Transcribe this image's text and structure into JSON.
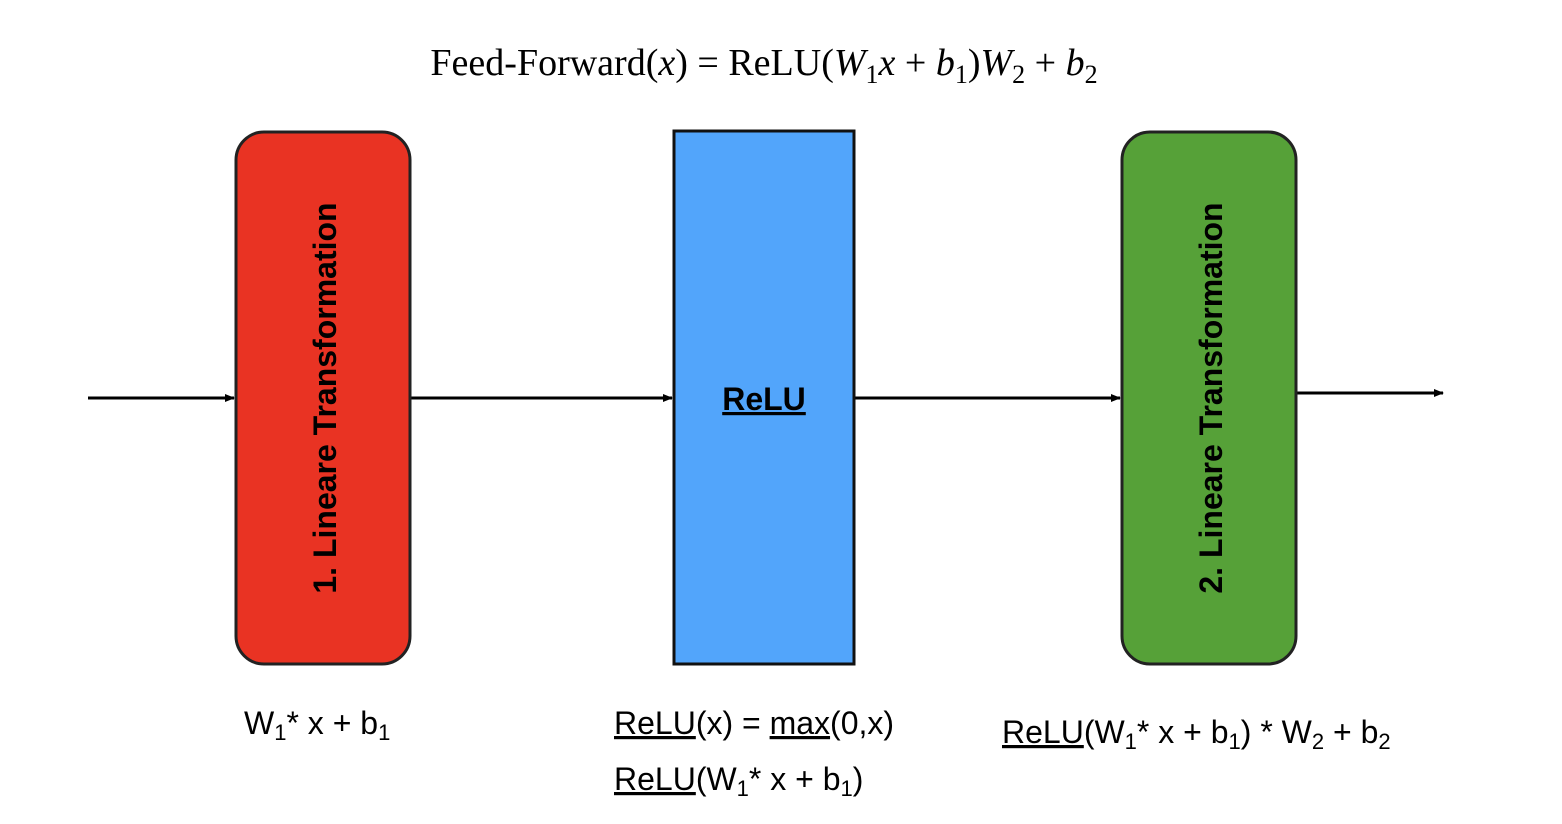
{
  "formula": {
    "name": "Feed-Forward",
    "arg_open": "(",
    "arg": "x",
    "arg_close": ")",
    "equals": " = ",
    "relu": "ReLU",
    "open": "(",
    "w1": "W",
    "w1_sub": "1",
    "x": "x",
    "plus1": " + ",
    "b1": "b",
    "b1_sub": "1",
    "close": ")",
    "w2": "W",
    "w2_sub": "2",
    "plus2": " + ",
    "b2": "b",
    "b2_sub": "2"
  },
  "blocks": [
    {
      "label": "1. Lineare Transformation",
      "color": "#e93323"
    },
    {
      "label": "ReLU",
      "color": "#52a5fb"
    },
    {
      "label": "2. Lineare Transformation",
      "color": "#56a138"
    }
  ],
  "captions": {
    "first": {
      "w": "W",
      "w_sub": "1",
      "rest": "* x + b",
      "b_sub": "1"
    },
    "relu_def": {
      "relu": "ReLU",
      "mid": "(x) = ",
      "max": "max",
      "end": "(0,x)"
    },
    "relu_apply": {
      "relu": "ReLU",
      "open": "(W",
      "w_sub": "1",
      "rest": "* x + b",
      "b_sub": "1",
      "close": ")"
    },
    "second": {
      "relu": "ReLU",
      "open": "(W",
      "w_sub": "1",
      "rest": "* x + b",
      "b_sub": "1",
      "mid": ") * W",
      "w2_sub": "2",
      "plus": " + b",
      "b2_sub": "2"
    }
  }
}
